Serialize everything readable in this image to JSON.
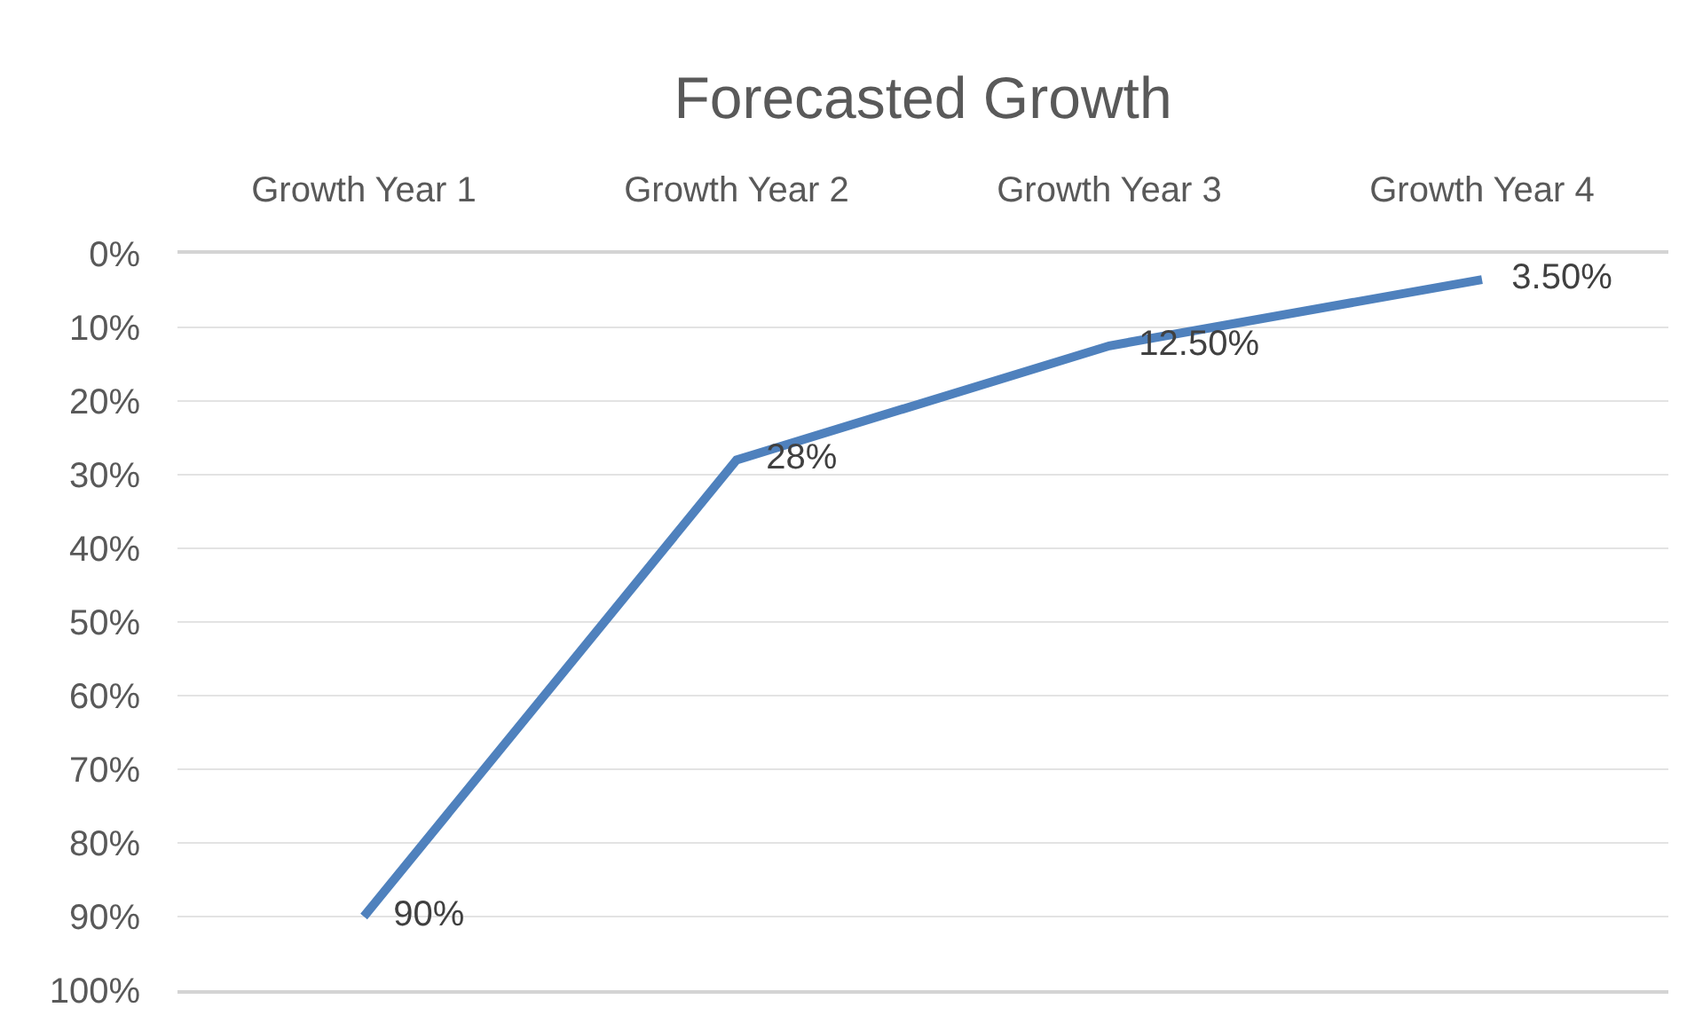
{
  "chart_data": {
    "type": "line",
    "title": "Forecasted Growth",
    "categories": [
      "Growth Year 1",
      "Growth Year 2",
      "Growth Year 3",
      "Growth Year 4"
    ],
    "series": [
      {
        "color": "#4f81bd",
        "values": [
          90,
          28,
          12.5,
          3.5
        ],
        "value_labels": [
          "90%",
          "28%",
          "12.50%",
          "3.50%"
        ]
      }
    ],
    "ylim": [
      100,
      0
    ],
    "yticks": [
      {
        "value": 0,
        "label": "0%"
      },
      {
        "value": 10,
        "label": "10%"
      },
      {
        "value": 20,
        "label": "20%"
      },
      {
        "value": 30,
        "label": "30%"
      },
      {
        "value": 40,
        "label": "40%"
      },
      {
        "value": 50,
        "label": "50%"
      },
      {
        "value": 60,
        "label": "60%"
      },
      {
        "value": 70,
        "label": "70%"
      },
      {
        "value": 80,
        "label": "80%"
      },
      {
        "value": 90,
        "label": "90%"
      },
      {
        "value": 100,
        "label": "100%"
      }
    ],
    "grid": "y",
    "marker": "none",
    "line_style": "solid"
  }
}
